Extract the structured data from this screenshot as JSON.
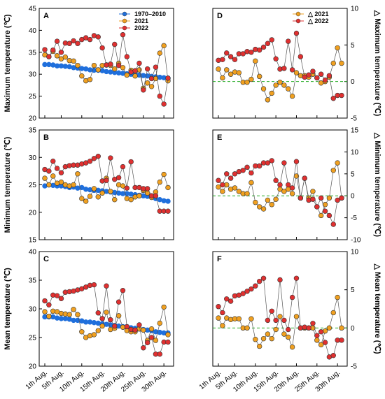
{
  "x_tick_labels": [
    "1th Aug.",
    "5th Aug.",
    "10th Aug.",
    "15th Aug.",
    "20th Aug.",
    "25th Aug.",
    "30th Aug."
  ],
  "colors": {
    "baseline": "#1f6fdc",
    "y2021": "#f0a020",
    "y2022": "#e03030",
    "zero_line": "#22aa22",
    "connector": "#555555"
  },
  "chart_data": [
    {
      "panel": "A",
      "type": "line",
      "ylabel": "Maximum temperature (℃)",
      "ylim": [
        20,
        45
      ],
      "yticks": [
        20,
        25,
        30,
        35,
        40,
        45
      ],
      "legend": {
        "entries": [
          "1970–2010",
          "2021",
          "2022"
        ],
        "placement": "top-right"
      },
      "x": [
        1,
        2,
        3,
        4,
        5,
        6,
        7,
        8,
        9,
        10,
        11,
        12,
        13,
        14,
        15,
        16,
        17,
        18,
        19,
        20,
        21,
        22,
        23,
        24,
        25,
        26,
        27,
        28,
        29,
        30,
        31
      ],
      "series": [
        {
          "name": "1970–2010",
          "values": [
            32.2,
            32.2,
            32.1,
            31.9,
            31.9,
            31.8,
            31.7,
            31.5,
            31.4,
            31.3,
            31.2,
            31.0,
            30.9,
            30.9,
            30.8,
            30.6,
            30.5,
            30.4,
            30.3,
            30.2,
            30.1,
            30.0,
            29.9,
            29.8,
            29.7,
            29.6,
            29.5,
            29.4,
            29.3,
            29.2,
            29.1
          ]
        },
        {
          "name": "2021",
          "values": [
            34.4,
            34.0,
            35.2,
            34.2,
            33.5,
            33.9,
            33.1,
            33.0,
            32.0,
            29.6,
            28.5,
            28.8,
            32.0,
            31.0,
            32.0,
            32.1,
            32.0,
            31.2,
            32.5,
            31.5,
            29.8,
            30.9,
            29.6,
            31.0,
            26.8,
            28.0,
            27.2,
            29.0,
            34.8,
            36.5,
            28.5
          ]
        },
        {
          "name": "2022",
          "values": [
            35.6,
            34.0,
            35.5,
            37.5,
            35.0,
            37.1,
            37.0,
            37.6,
            37.0,
            37.9,
            38.3,
            37.9,
            38.8,
            38.5,
            36.0,
            32.1,
            32.3,
            36.8,
            32.0,
            39.0,
            34.0,
            30.5,
            30.8,
            32.5,
            26.4,
            31.2,
            29.0,
            31.6,
            25.0,
            23.2,
            29.1
          ]
        }
      ]
    },
    {
      "panel": "B",
      "type": "line",
      "ylabel": "Minimum temperature (℃)",
      "ylim": [
        15,
        35
      ],
      "yticks": [
        15,
        20,
        25,
        30,
        35
      ],
      "x": [
        1,
        2,
        3,
        4,
        5,
        6,
        7,
        8,
        9,
        10,
        11,
        12,
        13,
        14,
        15,
        16,
        17,
        18,
        19,
        20,
        21,
        22,
        23,
        24,
        25,
        26,
        27,
        28,
        29,
        30,
        31
      ],
      "series": [
        {
          "name": "1970–2010",
          "values": [
            24.8,
            25.0,
            24.9,
            24.8,
            24.8,
            24.7,
            24.5,
            24.6,
            24.4,
            24.5,
            24.2,
            24.1,
            24.0,
            24.0,
            23.9,
            23.8,
            23.7,
            23.6,
            23.5,
            23.4,
            23.4,
            23.3,
            23.2,
            23.1,
            23.0,
            22.9,
            22.8,
            22.5,
            22.3,
            22.1,
            22.0
          ]
        },
        {
          "name": "2021",
          "values": [
            26.2,
            25.0,
            26.6,
            25.3,
            25.5,
            25.0,
            24.8,
            25.0,
            27.0,
            22.5,
            22.0,
            22.9,
            24.3,
            22.8,
            23.5,
            26.2,
            23.8,
            22.3,
            25.0,
            24.8,
            22.5,
            22.3,
            22.8,
            23.0,
            24.0,
            23.5,
            22.7,
            23.7,
            25.5,
            26.9,
            24.5
          ]
        },
        {
          "name": "2022",
          "values": [
            27.8,
            27.5,
            29.3,
            28.0,
            27.2,
            28.3,
            28.5,
            28.6,
            28.6,
            28.8,
            29.0,
            29.3,
            29.8,
            30.2,
            25.7,
            25.8,
            29.9,
            26.0,
            26.3,
            28.3,
            24.4,
            29.2,
            24.5,
            24.5,
            24.3,
            24.3,
            23.0,
            23.0,
            20.2,
            20.2,
            20.2
          ]
        }
      ]
    },
    {
      "panel": "C",
      "type": "line",
      "ylabel": "Mean temperature (℃)",
      "ylim": [
        20,
        40
      ],
      "yticks": [
        20,
        25,
        30,
        35,
        40
      ],
      "x": [
        1,
        2,
        3,
        4,
        5,
        6,
        7,
        8,
        9,
        10,
        11,
        12,
        13,
        14,
        15,
        16,
        17,
        18,
        19,
        20,
        21,
        22,
        23,
        24,
        25,
        26,
        27,
        28,
        29,
        30,
        31
      ],
      "series": [
        {
          "name": "1970–2010",
          "values": [
            28.6,
            28.6,
            28.6,
            28.4,
            28.3,
            28.3,
            28.2,
            28.0,
            28.0,
            27.9,
            27.7,
            27.7,
            27.6,
            27.5,
            27.4,
            27.3,
            27.2,
            27.1,
            27.0,
            26.9,
            26.8,
            26.7,
            26.6,
            26.5,
            26.4,
            26.3,
            26.2,
            26.0,
            25.9,
            25.8,
            25.8
          ]
        },
        {
          "name": "2021",
          "values": [
            29.5,
            28.7,
            29.6,
            29.5,
            29.2,
            29.1,
            29.0,
            29.9,
            29.0,
            26.0,
            25.0,
            25.3,
            25.5,
            26.2,
            27.0,
            29.4,
            26.4,
            26.6,
            28.8,
            26.8,
            26.2,
            26.0,
            26.0,
            26.5,
            26.3,
            24.5,
            26.5,
            24.5,
            27.5,
            30.3,
            25.5
          ]
        },
        {
          "name": "2022",
          "values": [
            31.4,
            30.7,
            32.4,
            32.3,
            31.8,
            32.9,
            33.0,
            33.1,
            33.3,
            33.5,
            33.8,
            34.1,
            34.2,
            29.3,
            28.3,
            34.0,
            28.1,
            27.0,
            31.2,
            33.2,
            26.9,
            26.4,
            26.3,
            27.2,
            23.2,
            24.1,
            25.0,
            22.1,
            22.1,
            24.2,
            24.2
          ]
        }
      ]
    },
    {
      "panel": "D",
      "type": "line",
      "ylabel": "△ Maximum temperature (℃)",
      "ylim": [
        -5,
        10
      ],
      "yticks": [
        -5,
        0,
        5,
        10
      ],
      "legend": {
        "entries": [
          "△ 2021",
          "△ 2022"
        ],
        "placement": "top-right"
      },
      "x": [
        1,
        2,
        3,
        4,
        5,
        6,
        7,
        8,
        9,
        10,
        11,
        12,
        13,
        14,
        15,
        16,
        17,
        18,
        19,
        20,
        21,
        22,
        23,
        24,
        25,
        26,
        27,
        28,
        29,
        30,
        31
      ],
      "series": [
        {
          "name": "△ 2021",
          "values": [
            1.7,
            0.5,
            1.6,
            1.0,
            1.3,
            1.2,
            -0.1,
            -0.1,
            0.3,
            2.8,
            0.7,
            -1.0,
            -2.5,
            -1.6,
            -0.5,
            -0.1,
            -0.5,
            -1.0,
            -2.0,
            1.2,
            0.8,
            0.8,
            0.6,
            1.0,
            0.5,
            -0.2,
            0.0,
            0.6,
            2.5,
            4.6,
            2.5
          ]
        },
        {
          "name": "△ 2022",
          "values": [
            2.9,
            3.0,
            3.9,
            3.4,
            3.0,
            3.8,
            3.8,
            4.1,
            4.0,
            4.4,
            4.3,
            4.7,
            5.2,
            5.7,
            3.1,
            1.7,
            1.8,
            5.5,
            1.6,
            6.6,
            3.4,
            0.6,
            0.9,
            1.4,
            0.5,
            1.0,
            0.2,
            0.8,
            -2.3,
            -1.9,
            -1.9
          ]
        }
      ]
    },
    {
      "panel": "E",
      "type": "line",
      "ylabel": "△ Minimum temperature (℃)",
      "ylim": [
        -10,
        15
      ],
      "yticks": [
        -10,
        -5,
        0,
        5,
        10,
        15
      ],
      "x": [
        1,
        2,
        3,
        4,
        5,
        6,
        7,
        8,
        9,
        10,
        11,
        12,
        13,
        14,
        15,
        16,
        17,
        18,
        19,
        20,
        21,
        22,
        23,
        24,
        25,
        26,
        27,
        28,
        29,
        30,
        31
      ],
      "series": [
        {
          "name": "△ 2021",
          "values": [
            2.0,
            1.0,
            2.5,
            1.5,
            1.8,
            1.0,
            0.5,
            0.5,
            3.0,
            -1.5,
            -2.5,
            -3.0,
            -1.0,
            -2.0,
            -0.8,
            1.5,
            1.0,
            1.5,
            0.5,
            4.5,
            -0.5,
            4.0,
            -0.5,
            1.0,
            -2.5,
            -4.5,
            -2.0,
            -0.5,
            5.8,
            7.5,
            -0.5
          ]
        },
        {
          "name": "△ 2022",
          "values": [
            3.5,
            2.5,
            5.0,
            4.0,
            5.0,
            5.5,
            5.8,
            6.5,
            5.2,
            6.8,
            6.8,
            7.5,
            7.5,
            8.0,
            3.5,
            2.5,
            7.5,
            2.5,
            1.8,
            7.8,
            -0.5,
            4.0,
            -1.0,
            -0.8,
            -2.5,
            -0.5,
            -3.5,
            -4.5,
            -6.5,
            -1.0,
            -0.5
          ]
        }
      ]
    },
    {
      "panel": "F",
      "type": "line",
      "ylabel": "△ Mean temperature (℃)",
      "ylim": [
        -5,
        10
      ],
      "yticks": [
        -5,
        0,
        5,
        10
      ],
      "x": [
        1,
        2,
        3,
        4,
        5,
        6,
        7,
        8,
        9,
        10,
        11,
        12,
        13,
        14,
        15,
        16,
        17,
        18,
        19,
        20,
        21,
        22,
        23,
        24,
        25,
        26,
        27,
        28,
        29,
        30,
        31
      ],
      "series": [
        {
          "name": "△ 2021",
          "values": [
            1.3,
            0.3,
            1.3,
            1.1,
            1.2,
            1.2,
            0.0,
            0.0,
            1.2,
            -1.5,
            -2.4,
            -1.4,
            -0.8,
            -1.4,
            -0.2,
            1.5,
            -0.8,
            -1.2,
            -2.5,
            1.5,
            0.0,
            0.0,
            0.0,
            0.0,
            -1.6,
            -2.2,
            -0.4,
            0.0,
            2.0,
            4.0,
            0.0
          ]
        },
        {
          "name": "△ 2022",
          "values": [
            2.8,
            2.0,
            3.8,
            3.5,
            4.2,
            4.3,
            4.5,
            4.8,
            5.1,
            5.5,
            6.1,
            6.5,
            1.0,
            2.2,
            1.0,
            6.3,
            1.0,
            -0.2,
            4.0,
            6.5,
            0.0,
            0.1,
            0.0,
            0.6,
            -1.0,
            -0.5,
            -1.9,
            -3.8,
            -3.6,
            -1.6,
            -1.6
          ]
        }
      ]
    }
  ]
}
